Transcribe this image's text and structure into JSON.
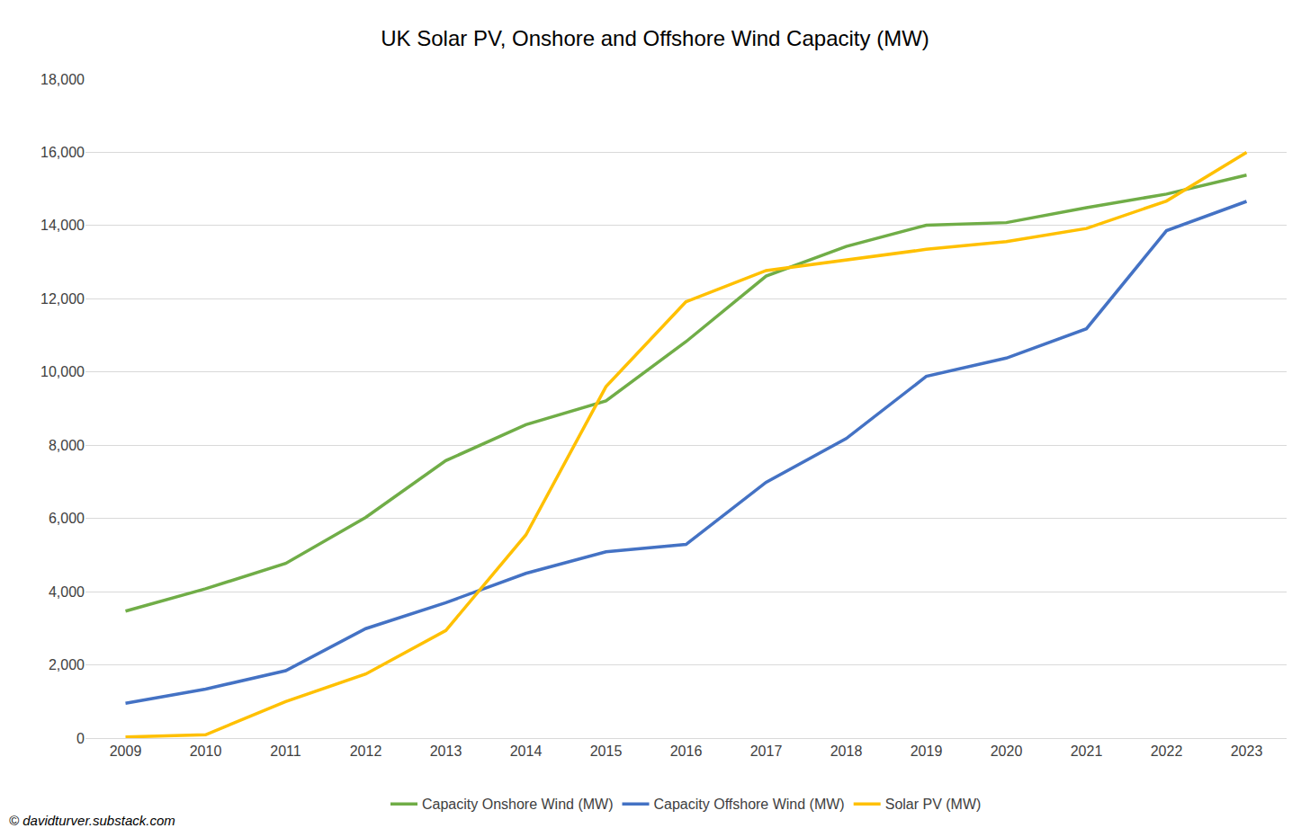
{
  "chart_data": {
    "type": "line",
    "title": "UK Solar PV, Onshore and Offshore Wind Capacity (MW)",
    "categories": [
      "2009",
      "2010",
      "2011",
      "2012",
      "2013",
      "2014",
      "2015",
      "2016",
      "2017",
      "2018",
      "2019",
      "2020",
      "2021",
      "2022",
      "2023"
    ],
    "series": [
      {
        "name": "Capacity Onshore Wind (MW)",
        "color": "#70AD47",
        "values": [
          3470,
          4080,
          4770,
          6030,
          7580,
          8560,
          9210,
          10830,
          12620,
          13430,
          14010,
          14080,
          14490,
          14860,
          15380
        ]
      },
      {
        "name": "Capacity Offshore Wind (MW)",
        "color": "#4472C4",
        "values": [
          950,
          1340,
          1840,
          2990,
          3700,
          4500,
          5090,
          5290,
          6990,
          8180,
          9880,
          10380,
          11180,
          13860,
          14660
        ]
      },
      {
        "name": "Solar PV (MW)",
        "color": "#FFC000",
        "values": [
          30,
          90,
          1000,
          1750,
          2940,
          5550,
          9600,
          11920,
          12770,
          13060,
          13350,
          13560,
          13920,
          14670,
          16000
        ]
      }
    ],
    "ylim": [
      0,
      18000
    ],
    "yticks": [
      0,
      {
        "value": 2000,
        "label": "2,000"
      },
      {
        "value": 4000,
        "label": "4,000"
      },
      {
        "value": 6000,
        "label": "6,000"
      },
      {
        "value": 8000,
        "label": "8,000"
      },
      {
        "value": 10000,
        "label": "10,000"
      },
      {
        "value": 12000,
        "label": "12,000"
      },
      {
        "value": 14000,
        "label": "14,000"
      },
      {
        "value": 16000,
        "label": "16,000"
      },
      {
        "value": 18000,
        "label": "18,000"
      }
    ],
    "grid": true,
    "legend": "bottom",
    "annotations": [
      "© davidturver.substack.com"
    ]
  }
}
